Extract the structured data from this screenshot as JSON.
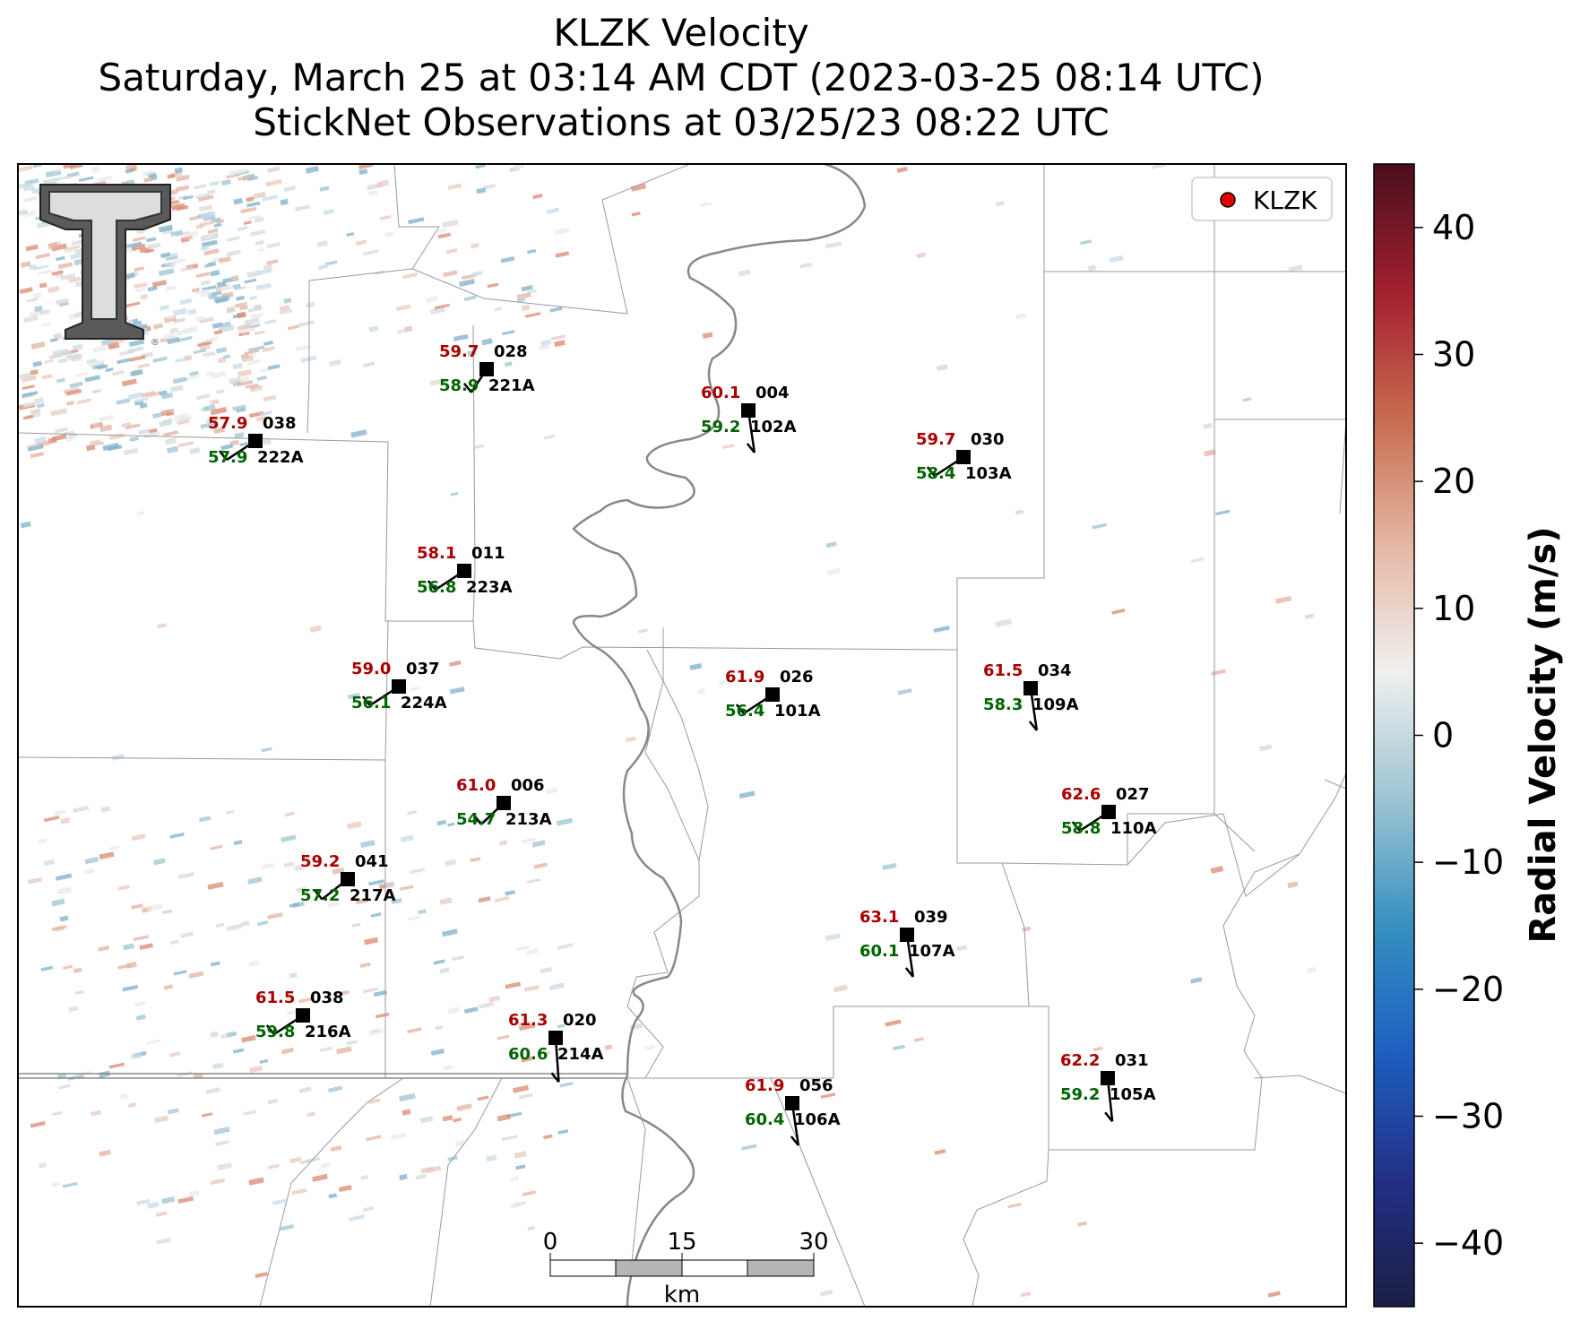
{
  "title": {
    "line1": "KLZK Velocity",
    "line2": "Saturday, March 25 at 03:14 AM CDT (2023-03-25 08:14 UTC)",
    "line3": "StickNet Observations at 03/25/23 08:22 UTC"
  },
  "legend": {
    "label": "KLZK",
    "marker_color": "#e00000",
    "placement": "top-right"
  },
  "scale_bar": {
    "ticks": [
      "0",
      "15",
      "30"
    ],
    "unit": "km"
  },
  "colorbar": {
    "label": "Radial Velocity (m/s)",
    "range": [
      -45,
      45
    ],
    "ticks": [
      "40",
      "30",
      "20",
      "10",
      "0",
      "−10",
      "−20",
      "−30",
      "−40"
    ],
    "colors": [
      "#1b1f45",
      "#232f86",
      "#1d5fbf",
      "#3690c0",
      "#9ec4d3",
      "#f0f0f0",
      "#e5b7a3",
      "#c86b4f",
      "#a31f2f",
      "#4a0f1c"
    ]
  },
  "logo": {
    "text": "TT",
    "name": "texas-tech-logo"
  },
  "stations": [
    {
      "id": "028",
      "temp": "59.7",
      "dew": "58.9",
      "dir": "221A"
    },
    {
      "id": "038",
      "temp": "57.9",
      "dew": "57.9",
      "dir": "222A"
    },
    {
      "id": "004",
      "temp": "60.1",
      "dew": "59.2",
      "dir": "102A"
    },
    {
      "id": "030",
      "temp": "59.7",
      "dew": "58.4",
      "dir": "103A"
    },
    {
      "id": "011",
      "temp": "58.1",
      "dew": "56.8",
      "dir": "223A"
    },
    {
      "id": "037",
      "temp": "59.0",
      "dew": "56.1",
      "dir": "224A"
    },
    {
      "id": "026",
      "temp": "61.9",
      "dew": "56.4",
      "dir": "101A"
    },
    {
      "id": "034",
      "temp": "61.5",
      "dew": "58.3",
      "dir": "109A"
    },
    {
      "id": "006",
      "temp": "61.0",
      "dew": "54.7",
      "dir": "213A"
    },
    {
      "id": "027",
      "temp": "62.6",
      "dew": "58.8",
      "dir": "110A"
    },
    {
      "id": "041",
      "temp": "59.2",
      "dew": "57.2",
      "dir": "217A"
    },
    {
      "id": "039",
      "temp": "63.1",
      "dew": "60.1",
      "dir": "107A"
    },
    {
      "id": "038",
      "temp": "61.5",
      "dew": "59.8",
      "dir": "216A"
    },
    {
      "id": "020",
      "temp": "61.3",
      "dew": "60.6",
      "dir": "214A"
    },
    {
      "id": "031",
      "temp": "62.2",
      "dew": "59.2",
      "dir": "105A"
    },
    {
      "id": "056",
      "temp": "61.9",
      "dew": "60.4",
      "dir": "106A"
    }
  ]
}
